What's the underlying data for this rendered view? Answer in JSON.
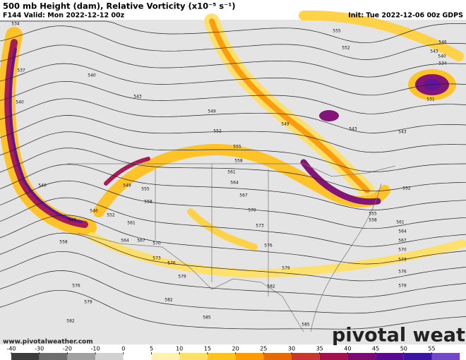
{
  "header": {
    "title": "500 mb Height (dam), Relative Vorticity (x10⁻⁵ s⁻¹)",
    "valid": "F144 Valid: Mon 2022-12-12 00z",
    "init": "Init: Tue 2022-12-06 00z GDPS"
  },
  "watermark": {
    "brand": "pivotal weather",
    "url": "www.pivotalweather.com"
  },
  "colorbar": {
    "ticks": [
      -40,
      -30,
      -20,
      -10,
      0,
      5,
      10,
      15,
      20,
      25,
      30,
      35,
      40,
      45,
      50,
      55
    ],
    "colors": [
      "#3c3c3c",
      "#6e6e6e",
      "#a0a0a0",
      "#d2d2d2",
      "#ffffff",
      "#fff1b0",
      "#ffe066",
      "#ffc21e",
      "#ff9a00",
      "#e56a00",
      "#c8382a",
      "#a3124c",
      "#7d0a72",
      "#5a0a92",
      "#3c14a4",
      "#7048c8"
    ]
  },
  "contour_labels": [
    534,
    537,
    540,
    543,
    540,
    549,
    552,
    555,
    558,
    561,
    564,
    567,
    570,
    573,
    576,
    579,
    582,
    585,
    585,
    582,
    582,
    579,
    576,
    579,
    576,
    573,
    570,
    567,
    564,
    561,
    558,
    555,
    549,
    552,
    546,
    543,
    558,
    540,
    555,
    552,
    546,
    543,
    540,
    534,
    531,
    543,
    543,
    549,
    552,
    555,
    558,
    561,
    564,
    567,
    570,
    573,
    576,
    579
  ]
}
